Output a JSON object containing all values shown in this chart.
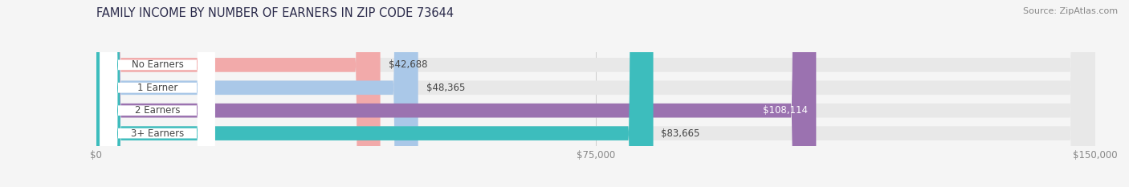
{
  "title": "FAMILY INCOME BY NUMBER OF EARNERS IN ZIP CODE 73644",
  "source": "Source: ZipAtlas.com",
  "categories": [
    "No Earners",
    "1 Earner",
    "2 Earners",
    "3+ Earners"
  ],
  "values": [
    42688,
    48365,
    108114,
    83665
  ],
  "bar_colors": [
    "#f2aaaa",
    "#aac8e8",
    "#9b72b0",
    "#3dbdbd"
  ],
  "bar_bg_color": "#e8e8e8",
  "xlim": [
    0,
    150000
  ],
  "xticks": [
    0,
    75000,
    150000
  ],
  "xtick_labels": [
    "$0",
    "$75,000",
    "$150,000"
  ],
  "background_color": "#f5f5f5",
  "title_fontsize": 10.5,
  "source_fontsize": 8,
  "label_fontsize": 8.5,
  "category_fontsize": 8.5,
  "tick_fontsize": 8.5
}
